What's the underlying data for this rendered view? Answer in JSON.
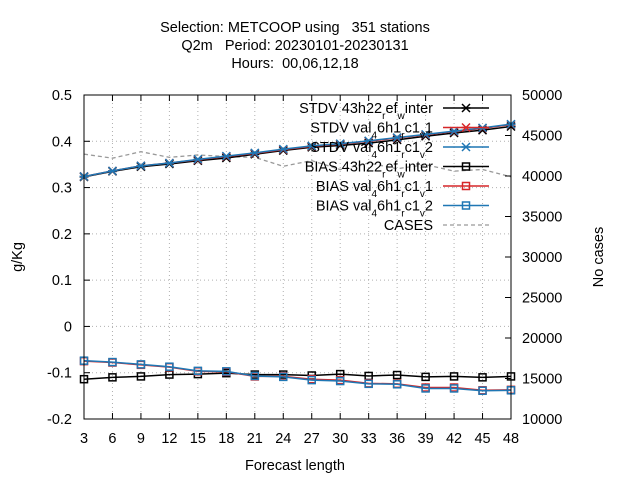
{
  "chart_data": {
    "type": "line",
    "title": [
      "Selection: METCOOP using   351 stations",
      "Q2m   Period: 20230101-20230131",
      "Hours:  00,06,12,18"
    ],
    "xlabel": "Forecast length",
    "ylabel": "g/Kg",
    "y2label": "No cases",
    "x": [
      3,
      6,
      9,
      12,
      15,
      18,
      21,
      24,
      27,
      30,
      33,
      36,
      39,
      42,
      45,
      48
    ],
    "ylim": [
      -0.2,
      0.5
    ],
    "y2lim": [
      10000,
      50000
    ],
    "yticks": [
      "-0.2",
      "-0.1",
      "0",
      "0.1",
      "0.2",
      "0.3",
      "0.4",
      "0.5"
    ],
    "y2ticks": [
      "10000",
      "15000",
      "20000",
      "25000",
      "30000",
      "35000",
      "40000",
      "45000",
      "50000"
    ],
    "xticks": [
      "3",
      "6",
      "9",
      "12",
      "15",
      "18",
      "21",
      "24",
      "27",
      "30",
      "33",
      "36",
      "39",
      "42",
      "45",
      "48"
    ],
    "grid": true,
    "legend_position": "top-right",
    "series": [
      {
        "name": "STDV 43h22_ref_winter",
        "legend": {
          "parts": [
            [
              "STDV 43h22",
              ""
            ],
            [
              "r",
              "sub"
            ],
            [
              "ef",
              ""
            ],
            [
              "w",
              "sub"
            ],
            [
              "inter",
              ""
            ]
          ]
        },
        "color": "#000000",
        "marker": "x",
        "axis": "y",
        "values": [
          0.323,
          0.335,
          0.345,
          0.351,
          0.358,
          0.364,
          0.372,
          0.38,
          0.387,
          0.391,
          0.396,
          0.403,
          0.411,
          0.418,
          0.424,
          0.432
        ]
      },
      {
        "name": "STDV val_46h1_rc1_v1",
        "legend": {
          "parts": [
            [
              "STDV val",
              ""
            ],
            [
              "4",
              "sub"
            ],
            [
              "6h1",
              ""
            ],
            [
              "r",
              "sub"
            ],
            [
              "c1",
              ""
            ],
            [
              "v",
              "sub"
            ],
            [
              "1",
              ""
            ]
          ]
        },
        "color": "#d62728",
        "marker": "x",
        "axis": "y",
        "values": [
          0.324,
          0.336,
          0.347,
          0.353,
          0.36,
          0.367,
          0.374,
          0.382,
          0.389,
          0.394,
          0.4,
          0.407,
          0.414,
          0.421,
          0.428,
          0.436
        ]
      },
      {
        "name": "STDV val_46h1_rc1_v2",
        "legend": {
          "parts": [
            [
              "STDV val",
              ""
            ],
            [
              "4",
              "sub"
            ],
            [
              "6h1",
              ""
            ],
            [
              "r",
              "sub"
            ],
            [
              "c1",
              ""
            ],
            [
              "v",
              "sub"
            ],
            [
              "2",
              ""
            ]
          ]
        },
        "color": "#1f77b4",
        "marker": "x",
        "axis": "y",
        "values": [
          0.324,
          0.336,
          0.347,
          0.353,
          0.361,
          0.368,
          0.375,
          0.383,
          0.39,
          0.395,
          0.401,
          0.408,
          0.415,
          0.422,
          0.429,
          0.437
        ]
      },
      {
        "name": "BIAS 43h22_ref_winter",
        "legend": {
          "parts": [
            [
              "BIAS 43h22",
              ""
            ],
            [
              "r",
              "sub"
            ],
            [
              "ef",
              ""
            ],
            [
              "w",
              "sub"
            ],
            [
              "inter",
              ""
            ]
          ]
        },
        "color": "#000000",
        "marker": "square",
        "axis": "y",
        "values": [
          -0.114,
          -0.11,
          -0.108,
          -0.104,
          -0.103,
          -0.101,
          -0.104,
          -0.104,
          -0.106,
          -0.103,
          -0.107,
          -0.105,
          -0.109,
          -0.108,
          -0.11,
          -0.108
        ]
      },
      {
        "name": "BIAS val_46h1_rc1_v1",
        "legend": {
          "parts": [
            [
              "BIAS val",
              ""
            ],
            [
              "4",
              "sub"
            ],
            [
              "6h1",
              ""
            ],
            [
              "r",
              "sub"
            ],
            [
              "c1",
              ""
            ],
            [
              "v",
              "sub"
            ],
            [
              "1",
              ""
            ]
          ]
        },
        "color": "#d62728",
        "marker": "square",
        "axis": "y",
        "values": [
          -0.075,
          -0.078,
          -0.083,
          -0.088,
          -0.097,
          -0.098,
          -0.108,
          -0.108,
          -0.114,
          -0.116,
          -0.123,
          -0.124,
          -0.132,
          -0.132,
          -0.138,
          -0.137
        ]
      },
      {
        "name": "BIAS val_46h1_rc1_v2",
        "legend": {
          "parts": [
            [
              "BIAS val",
              ""
            ],
            [
              "4",
              "sub"
            ],
            [
              "6h1",
              ""
            ],
            [
              "r",
              "sub"
            ],
            [
              "c1",
              ""
            ],
            [
              "v",
              "sub"
            ],
            [
              "2",
              ""
            ]
          ]
        },
        "color": "#1f77b4",
        "marker": "square",
        "axis": "y",
        "values": [
          -0.074,
          -0.077,
          -0.082,
          -0.087,
          -0.096,
          -0.097,
          -0.107,
          -0.109,
          -0.116,
          -0.118,
          -0.124,
          -0.125,
          -0.134,
          -0.134,
          -0.139,
          -0.138
        ]
      },
      {
        "name": "CASES",
        "legend": {
          "parts": [
            [
              "CASES",
              ""
            ]
          ]
        },
        "color": "#999999",
        "marker": "none",
        "dash": true,
        "axis": "y2",
        "values": [
          42700,
          42200,
          43000,
          42300,
          42600,
          42400,
          42300,
          41200,
          41900,
          40800,
          41600,
          40900,
          41400,
          40600,
          40800,
          39900
        ]
      }
    ]
  }
}
